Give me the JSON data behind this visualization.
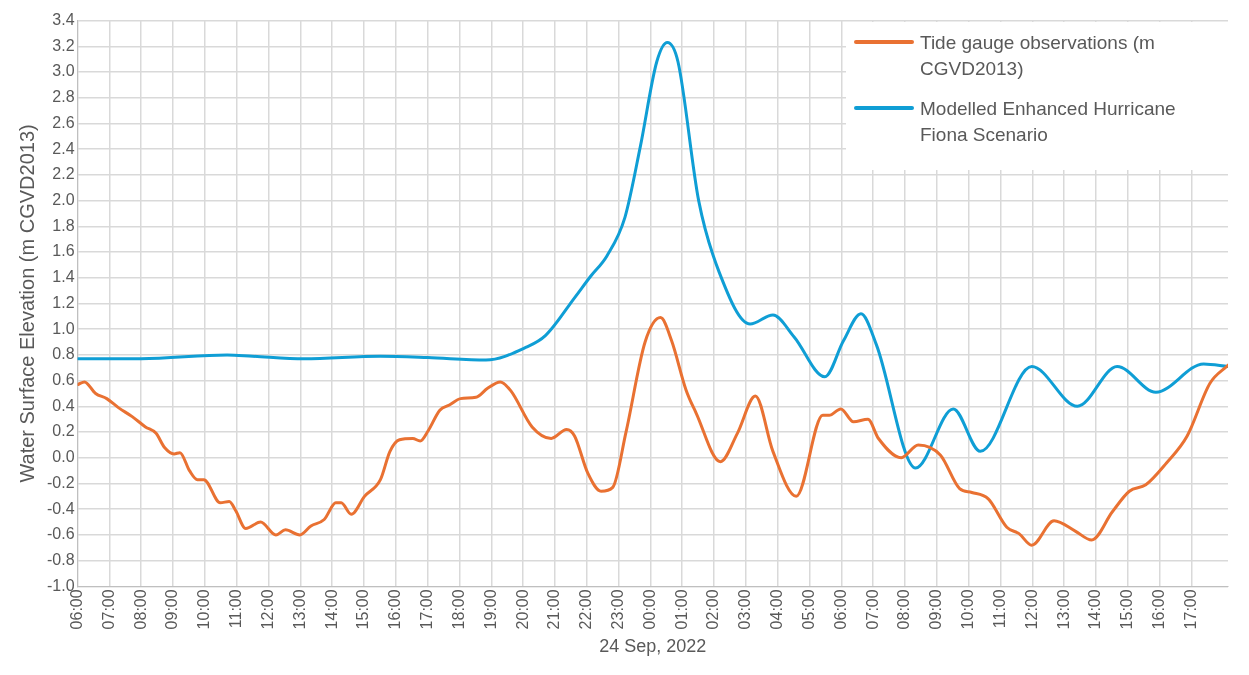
{
  "chart_data": {
    "type": "line",
    "xlabel": "24 Sep, 2022",
    "ylabel": "Water Surface Elevation (m CGVD2013)",
    "legend": "top right",
    "grid": true,
    "xlim": [
      "2022-09-23T06:00",
      "2022-09-24T18:09"
    ],
    "xticks": [
      {
        "value": "2022-09-23T06:00",
        "label": "06:00"
      },
      {
        "value": "2022-09-23T07:00",
        "label": "07:00"
      },
      {
        "value": "2022-09-23T08:00",
        "label": "08:00"
      },
      {
        "value": "2022-09-23T09:00",
        "label": "09:00"
      },
      {
        "value": "2022-09-23T10:00",
        "label": "10:00"
      },
      {
        "value": "2022-09-23T11:00",
        "label": "11:00"
      },
      {
        "value": "2022-09-23T12:00",
        "label": "12:00"
      },
      {
        "value": "2022-09-23T13:00",
        "label": "13:00"
      },
      {
        "value": "2022-09-23T14:00",
        "label": "14:00"
      },
      {
        "value": "2022-09-23T15:00",
        "label": "15:00"
      },
      {
        "value": "2022-09-23T16:00",
        "label": "16:00"
      },
      {
        "value": "2022-09-23T17:00",
        "label": "17:00"
      },
      {
        "value": "2022-09-23T18:00",
        "label": "18:00"
      },
      {
        "value": "2022-09-23T19:00",
        "label": "19:00"
      },
      {
        "value": "2022-09-23T20:00",
        "label": "20:00"
      },
      {
        "value": "2022-09-23T21:00",
        "label": "21:00"
      },
      {
        "value": "2022-09-23T22:00",
        "label": "22:00"
      },
      {
        "value": "2022-09-23T23:00",
        "label": "23:00"
      },
      {
        "value": "2022-09-24T00:00",
        "label": "00:00"
      },
      {
        "value": "2022-09-24T01:00",
        "label": "01:00"
      },
      {
        "value": "2022-09-24T02:00",
        "label": "02:00"
      },
      {
        "value": "2022-09-24T03:00",
        "label": "03:00"
      },
      {
        "value": "2022-09-24T04:00",
        "label": "04:00"
      },
      {
        "value": "2022-09-24T05:00",
        "label": "05:00"
      },
      {
        "value": "2022-09-24T06:00",
        "label": "06:00"
      },
      {
        "value": "2022-09-24T07:00",
        "label": "07:00"
      },
      {
        "value": "2022-09-24T08:00",
        "label": "08:00"
      },
      {
        "value": "2022-09-24T09:00",
        "label": "09:00"
      },
      {
        "value": "2022-09-24T10:00",
        "label": "10:00"
      },
      {
        "value": "2022-09-24T11:00",
        "label": "11:00"
      },
      {
        "value": "2022-09-24T12:00",
        "label": "12:00"
      },
      {
        "value": "2022-09-24T13:00",
        "label": "13:00"
      },
      {
        "value": "2022-09-24T14:00",
        "label": "14:00"
      },
      {
        "value": "2022-09-24T15:00",
        "label": "15:00"
      },
      {
        "value": "2022-09-24T16:00",
        "label": "16:00"
      },
      {
        "value": "2022-09-24T17:00",
        "label": "17:00"
      }
    ],
    "ylim": [
      -1,
      3.4
    ],
    "yticks": [
      {
        "value": -1,
        "label": "-1.0"
      },
      -0.8,
      -0.6,
      -0.4,
      -0.2,
      {
        "value": 0,
        "label": "0.0"
      },
      0.2,
      0.4,
      0.6,
      0.8,
      {
        "value": 1,
        "label": "1.0"
      },
      1.2,
      1.4,
      1.6,
      1.8,
      {
        "value": 2,
        "label": "2.0"
      },
      2.2,
      2.4,
      2.6,
      2.8,
      {
        "value": 3,
        "label": "3.0"
      },
      3.2,
      3.4
    ],
    "series": [
      {
        "name": "Tide gauge observations (m CGVD2013)",
        "color": "#e97132",
        "x": [
          "2022-09-23T06:01",
          "2022-09-23T06:13",
          "2022-09-23T06:34",
          "2022-09-23T06:55",
          "2022-09-23T07:17",
          "2022-09-23T07:43",
          "2022-09-23T08:08",
          "2022-09-23T08:28",
          "2022-09-23T08:44",
          "2022-09-23T09:02",
          "2022-09-23T09:13",
          "2022-09-23T09:31",
          "2022-09-23T09:46",
          "2022-09-23T09:58",
          "2022-09-23T10:29",
          "2022-09-23T10:46",
          "2022-09-23T10:58",
          "2022-09-23T11:17",
          "2022-09-23T11:45",
          "2022-09-23T12:14",
          "2022-09-23T12:32",
          "2022-09-23T12:59",
          "2022-09-23T13:20",
          "2022-09-23T13:45",
          "2022-09-23T14:07",
          "2022-09-23T14:17",
          "2022-09-23T14:36",
          "2022-09-23T15:01",
          "2022-09-23T15:31",
          "2022-09-23T15:49",
          "2022-09-23T16:07",
          "2022-09-23T16:32",
          "2022-09-23T16:46",
          "2022-09-23T17:01",
          "2022-09-23T17:23",
          "2022-09-23T17:41",
          "2022-09-23T18:02",
          "2022-09-23T18:31",
          "2022-09-23T18:53",
          "2022-09-23T19:17",
          "2022-09-23T19:37",
          "2022-09-23T20:17",
          "2022-09-23T20:53",
          "2022-09-23T21:22",
          "2022-09-23T21:37",
          "2022-09-23T22:02",
          "2022-09-23T22:27",
          "2022-09-23T22:49",
          "2022-09-23T23:14",
          "2022-09-23T23:50",
          "2022-09-24T00:19",
          "2022-09-24T00:40",
          "2022-09-24T01:07",
          "2022-09-24T01:26",
          "2022-09-24T02:12",
          "2022-09-24T02:44",
          "2022-09-24T03:18",
          "2022-09-24T03:51",
          "2022-09-24T04:35",
          "2022-09-24T05:25",
          "2022-09-24T05:37",
          "2022-09-24T05:59",
          "2022-09-24T06:23",
          "2022-09-24T06:50",
          "2022-09-24T07:10",
          "2022-09-24T07:53",
          "2022-09-24T08:25",
          "2022-09-24T09:07",
          "2022-09-24T09:43",
          "2022-09-24T10:06",
          "2022-09-24T10:37",
          "2022-09-24T11:12",
          "2022-09-24T11:35",
          "2022-09-24T11:59",
          "2022-09-24T12:41",
          "2022-09-24T13:21",
          "2022-09-24T13:52",
          "2022-09-24T14:31",
          "2022-09-24T15:03",
          "2022-09-24T15:34",
          "2022-09-24T16:13",
          "2022-09-24T16:52",
          "2022-09-24T17:35",
          "2022-09-24T18:09"
        ],
        "values": [
          0.57,
          0.59,
          0.5,
          0.46,
          0.39,
          0.32,
          0.24,
          0.19,
          0.08,
          0.03,
          0.04,
          -0.1,
          -0.17,
          -0.17,
          -0.35,
          -0.34,
          -0.41,
          -0.55,
          -0.5,
          -0.6,
          -0.56,
          -0.6,
          -0.53,
          -0.48,
          -0.35,
          -0.35,
          -0.44,
          -0.3,
          -0.17,
          0.05,
          0.14,
          0.15,
          0.13,
          0.21,
          0.37,
          0.41,
          0.46,
          0.47,
          0.54,
          0.59,
          0.52,
          0.24,
          0.15,
          0.22,
          0.17,
          -0.12,
          -0.26,
          -0.23,
          0.2,
          0.9,
          1.09,
          0.91,
          0.53,
          0.35,
          -0.03,
          0.19,
          0.48,
          0.05,
          -0.3,
          0.33,
          0.33,
          0.38,
          0.28,
          0.3,
          0.15,
          0.0,
          0.1,
          0.02,
          -0.24,
          -0.27,
          -0.32,
          -0.54,
          -0.59,
          -0.68,
          -0.49,
          -0.57,
          -0.64,
          -0.42,
          -0.26,
          -0.21,
          -0.04,
          0.17,
          0.58,
          0.72
        ]
      },
      {
        "name": "Modelled Enhanced Hurricane Fiona Scenario",
        "color": "#0f9ed5",
        "x": [
          "2022-09-23T06:01",
          "2022-09-23T08:00",
          "2022-09-23T10:42",
          "2022-09-23T11:30",
          "2022-09-23T13:07",
          "2022-09-23T15:31",
          "2022-09-23T17:00",
          "2022-09-23T18:50",
          "2022-09-23T20:06",
          "2022-09-23T20:42",
          "2022-09-23T21:38",
          "2022-09-23T22:07",
          "2022-09-23T22:38",
          "2022-09-23T23:12",
          "2022-09-23T23:41",
          "2022-09-24T00:12",
          "2022-09-24T00:32",
          "2022-09-24T00:52",
          "2022-09-24T01:31",
          "2022-09-24T02:10",
          "2022-09-24T03:08",
          "2022-09-24T03:51",
          "2022-09-24T04:31",
          "2022-09-24T05:29",
          "2022-09-24T06:04",
          "2022-09-24T06:37",
          "2022-09-24T07:06",
          "2022-09-24T08:20",
          "2022-09-24T09:31",
          "2022-09-24T10:22",
          "2022-09-24T11:59",
          "2022-09-24T13:25",
          "2022-09-24T14:40",
          "2022-09-24T15:53",
          "2022-09-24T17:23",
          "2022-09-24T18:09"
        ],
        "values": [
          0.77,
          0.77,
          0.8,
          0.79,
          0.77,
          0.79,
          0.78,
          0.76,
          0.86,
          0.95,
          1.25,
          1.41,
          1.57,
          1.87,
          2.42,
          3.08,
          3.23,
          3.08,
          2.0,
          1.44,
          1.04,
          1.11,
          0.94,
          0.63,
          0.91,
          1.12,
          0.88,
          -0.08,
          0.38,
          0.05,
          0.71,
          0.4,
          0.71,
          0.51,
          0.73,
          0.71
        ]
      }
    ]
  }
}
